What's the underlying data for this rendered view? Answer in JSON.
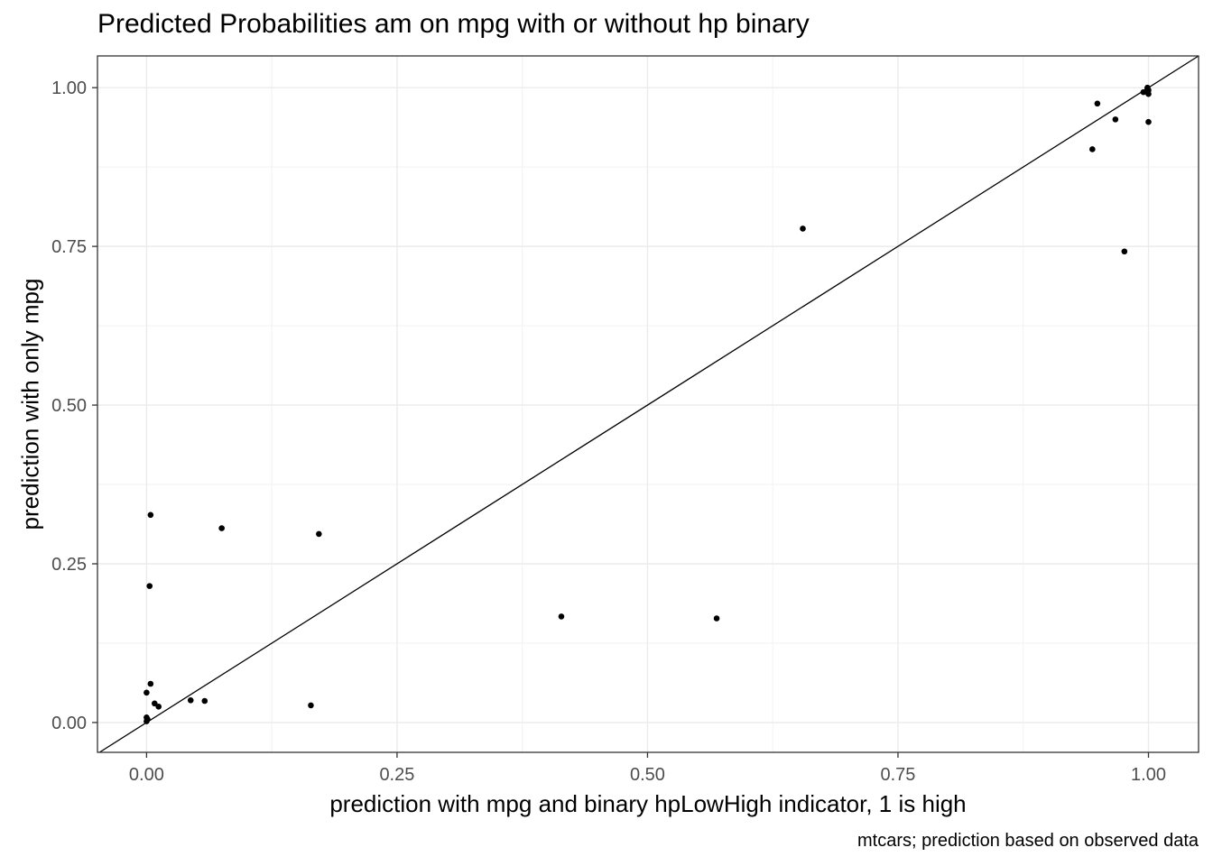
{
  "chart_data": {
    "type": "scatter",
    "title": "Predicted Probabilities am on mpg with or without hp binary",
    "xlabel": "prediction with mpg and binary hpLowHigh indicator, 1 is high",
    "ylabel": "prediction with only mpg",
    "caption": "mtcars; prediction based on observed data",
    "xlim": [
      -0.049,
      1.05
    ],
    "ylim": [
      -0.047,
      1.05
    ],
    "x_ticks": [
      0,
      0.25,
      0.5,
      0.75,
      1
    ],
    "x_tick_labels": [
      "0.00",
      "0.25",
      "0.50",
      "0.75",
      "1.00"
    ],
    "y_ticks": [
      0,
      0.25,
      0.5,
      0.75,
      1
    ],
    "y_tick_labels": [
      "0.00",
      "0.25",
      "0.50",
      "0.75",
      "1.00"
    ],
    "grid": true,
    "reference_line": {
      "slope": 1,
      "intercept": 0
    },
    "points": [
      {
        "x": 0.004,
        "y": 0.327
      },
      {
        "x": 0.003,
        "y": 0.215
      },
      {
        "x": 0.075,
        "y": 0.306
      },
      {
        "x": 0.172,
        "y": 0.297
      },
      {
        "x": 0.004,
        "y": 0.061
      },
      {
        "x": 0.0,
        "y": 0.047
      },
      {
        "x": 0.008,
        "y": 0.03
      },
      {
        "x": 0.012,
        "y": 0.025
      },
      {
        "x": 0.0,
        "y": 0.008
      },
      {
        "x": 0.001,
        "y": 0.005
      },
      {
        "x": 0.0,
        "y": 0.002
      },
      {
        "x": 0.044,
        "y": 0.035
      },
      {
        "x": 0.058,
        "y": 0.034
      },
      {
        "x": 0.164,
        "y": 0.027
      },
      {
        "x": 0.414,
        "y": 0.167
      },
      {
        "x": 0.569,
        "y": 0.164
      },
      {
        "x": 0.655,
        "y": 0.778
      },
      {
        "x": 0.944,
        "y": 0.903
      },
      {
        "x": 0.949,
        "y": 0.975
      },
      {
        "x": 0.967,
        "y": 0.95
      },
      {
        "x": 0.976,
        "y": 0.742
      },
      {
        "x": 0.995,
        "y": 0.993
      },
      {
        "x": 0.999,
        "y": 1.0
      },
      {
        "x": 0.999,
        "y": 0.998
      },
      {
        "x": 0.999,
        "y": 0.993
      },
      {
        "x": 1.0,
        "y": 0.996
      },
      {
        "x": 1.0,
        "y": 0.99
      },
      {
        "x": 1.0,
        "y": 0.946
      }
    ]
  }
}
